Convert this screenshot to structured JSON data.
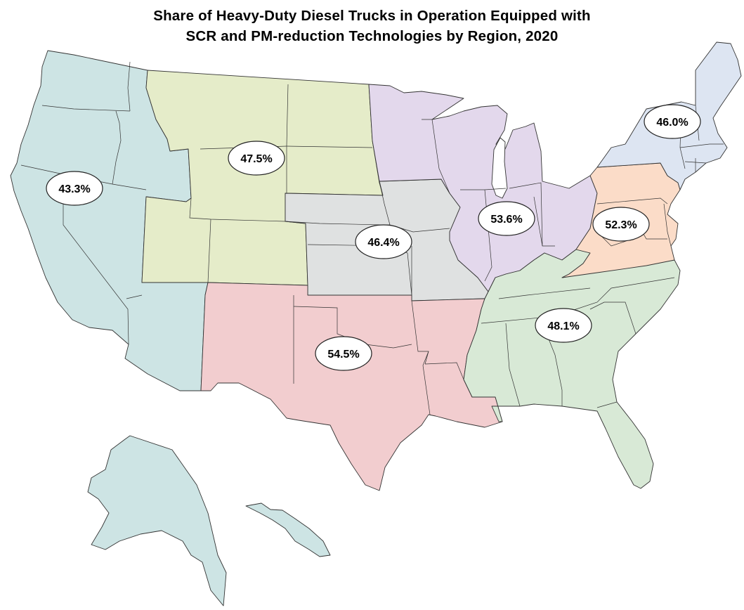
{
  "title": {
    "line1": "Share of Heavy-Duty Diesel Trucks in Operation Equipped with",
    "line2": "SCR and PM-reduction Technologies by Region, 2020"
  },
  "regions": [
    {
      "key": "west",
      "value": 43.3,
      "label": "43.3%",
      "color": "#cde4e4"
    },
    {
      "key": "mountain",
      "value": 47.5,
      "label": "47.5%",
      "color": "#e5ecc9"
    },
    {
      "key": "plains",
      "value": 46.4,
      "label": "46.4%",
      "color": "#dfe1e1"
    },
    {
      "key": "southwest",
      "value": 54.5,
      "label": "54.5%",
      "color": "#f2cdcf"
    },
    {
      "key": "great_lakes",
      "value": 53.6,
      "label": "53.6%",
      "color": "#e3d8ec"
    },
    {
      "key": "southeast",
      "value": 48.1,
      "label": "48.1%",
      "color": "#d8e9d6"
    },
    {
      "key": "mid_atlantic",
      "value": 52.3,
      "label": "52.3%",
      "color": "#fbdcc8"
    },
    {
      "key": "northeast",
      "value": 46.0,
      "label": "46.0%",
      "color": "#dde5f2"
    }
  ]
}
